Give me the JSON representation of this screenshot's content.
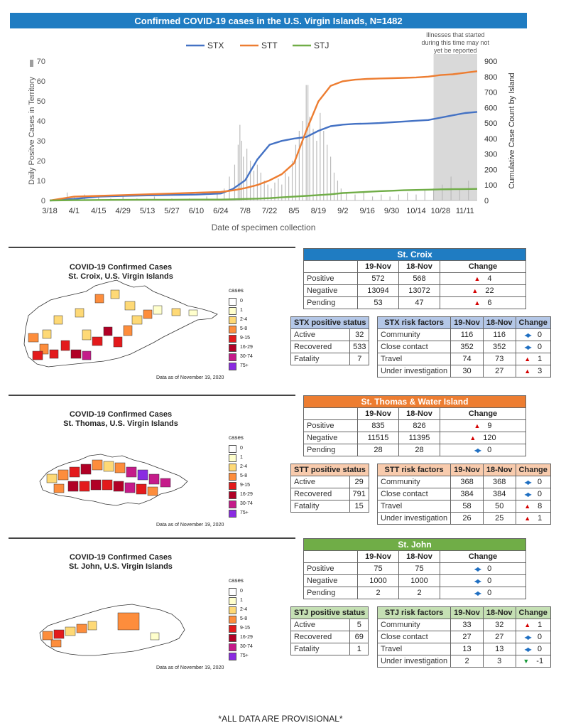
{
  "title": "Confirmed COVID-19 cases in the U.S. Virgin Islands, N=1482",
  "chart_data": {
    "type": "line",
    "x_ticks": [
      "3/18",
      "4/1",
      "4/15",
      "4/29",
      "5/13",
      "5/27",
      "6/10",
      "6/24",
      "7/8",
      "7/22",
      "8/5",
      "8/19",
      "9/2",
      "9/16",
      "9/30",
      "10/14",
      "10/28",
      "11/11"
    ],
    "xlabel": "Date of specimen collection",
    "ylabel_left": "Daily Positve Cases in Territory",
    "ylabel_right": "Cumulative Case Count by Island",
    "ylim_left": [
      0,
      70
    ],
    "ylim_right": [
      0,
      900
    ],
    "left_ticks": [
      0,
      10,
      20,
      30,
      40,
      50,
      60,
      70
    ],
    "right_ticks": [
      0,
      100,
      200,
      300,
      400,
      500,
      600,
      700,
      800,
      900
    ],
    "legend_position": "top",
    "shaded_note": "Illnesses that started during this time may not yet be reported",
    "shaded_range": [
      "10/24",
      "11/18"
    ],
    "series": [
      {
        "name": "STX",
        "color": "#4472c4",
        "x": [
          0,
          14,
          28,
          42,
          56,
          70,
          84,
          98,
          105,
          112,
          119,
          126,
          133,
          140,
          147,
          154,
          161,
          168,
          175,
          182,
          189,
          196,
          203,
          210,
          217,
          224,
          231,
          238,
          245
        ],
        "y": [
          0,
          10,
          25,
          30,
          33,
          36,
          38,
          45,
          75,
          130,
          265,
          360,
          385,
          400,
          410,
          450,
          480,
          490,
          495,
          497,
          500,
          505,
          510,
          515,
          520,
          535,
          550,
          565,
          572
        ]
      },
      {
        "name": "STT",
        "color": "#ed7d31",
        "x": [
          0,
          14,
          28,
          42,
          56,
          70,
          84,
          98,
          105,
          112,
          119,
          126,
          133,
          140,
          147,
          154,
          161,
          168,
          175,
          182,
          189,
          196,
          203,
          210,
          217,
          224,
          231,
          238,
          245
        ],
        "y": [
          0,
          25,
          30,
          35,
          40,
          45,
          50,
          55,
          65,
          80,
          100,
          130,
          170,
          240,
          450,
          640,
          740,
          770,
          780,
          785,
          788,
          790,
          792,
          795,
          800,
          810,
          815,
          825,
          835
        ]
      },
      {
        "name": "STJ",
        "color": "#70ad47",
        "x": [
          0,
          14,
          28,
          42,
          56,
          70,
          84,
          98,
          105,
          112,
          119,
          126,
          133,
          140,
          147,
          154,
          161,
          168,
          175,
          182,
          189,
          196,
          203,
          210,
          217,
          224,
          231,
          238,
          245
        ],
        "y": [
          0,
          2,
          3,
          4,
          5,
          5,
          6,
          6,
          8,
          10,
          12,
          15,
          20,
          25,
          30,
          35,
          40,
          48,
          52,
          56,
          60,
          63,
          66,
          68,
          70,
          72,
          73,
          74,
          75
        ]
      }
    ],
    "daily": [
      {
        "x": 10,
        "y": 4
      },
      {
        "x": 14,
        "y": 2
      },
      {
        "x": 20,
        "y": 3
      },
      {
        "x": 28,
        "y": 2
      },
      {
        "x": 35,
        "y": 1
      },
      {
        "x": 42,
        "y": 2
      },
      {
        "x": 50,
        "y": 1
      },
      {
        "x": 60,
        "y": 2
      },
      {
        "x": 70,
        "y": 1
      },
      {
        "x": 80,
        "y": 1
      },
      {
        "x": 90,
        "y": 2
      },
      {
        "x": 96,
        "y": 4
      },
      {
        "x": 100,
        "y": 6
      },
      {
        "x": 103,
        "y": 12
      },
      {
        "x": 106,
        "y": 18
      },
      {
        "x": 108,
        "y": 28
      },
      {
        "x": 109,
        "y": 38
      },
      {
        "x": 110,
        "y": 30
      },
      {
        "x": 111,
        "y": 22
      },
      {
        "x": 113,
        "y": 26
      },
      {
        "x": 115,
        "y": 20
      },
      {
        "x": 117,
        "y": 15
      },
      {
        "x": 119,
        "y": 18
      },
      {
        "x": 121,
        "y": 14
      },
      {
        "x": 123,
        "y": 10
      },
      {
        "x": 125,
        "y": 8
      },
      {
        "x": 127,
        "y": 6
      },
      {
        "x": 129,
        "y": 9
      },
      {
        "x": 131,
        "y": 11
      },
      {
        "x": 133,
        "y": 8
      },
      {
        "x": 135,
        "y": 14
      },
      {
        "x": 137,
        "y": 12
      },
      {
        "x": 139,
        "y": 20
      },
      {
        "x": 141,
        "y": 28
      },
      {
        "x": 143,
        "y": 35
      },
      {
        "x": 145,
        "y": 40
      },
      {
        "x": 147,
        "y": 58
      },
      {
        "x": 148,
        "y": 58
      },
      {
        "x": 149,
        "y": 42
      },
      {
        "x": 151,
        "y": 36
      },
      {
        "x": 153,
        "y": 30
      },
      {
        "x": 155,
        "y": 44
      },
      {
        "x": 157,
        "y": 35
      },
      {
        "x": 159,
        "y": 28
      },
      {
        "x": 161,
        "y": 22
      },
      {
        "x": 163,
        "y": 14
      },
      {
        "x": 165,
        "y": 10
      },
      {
        "x": 167,
        "y": 6
      },
      {
        "x": 170,
        "y": 4
      },
      {
        "x": 175,
        "y": 3
      },
      {
        "x": 180,
        "y": 4
      },
      {
        "x": 185,
        "y": 2
      },
      {
        "x": 190,
        "y": 3
      },
      {
        "x": 195,
        "y": 2
      },
      {
        "x": 200,
        "y": 3
      },
      {
        "x": 205,
        "y": 4
      },
      {
        "x": 210,
        "y": 3
      },
      {
        "x": 215,
        "y": 5
      },
      {
        "x": 220,
        "y": 6
      },
      {
        "x": 225,
        "y": 8
      },
      {
        "x": 230,
        "y": 12
      },
      {
        "x": 235,
        "y": 6
      },
      {
        "x": 240,
        "y": 10
      }
    ]
  },
  "map_common": {
    "legend_title": "cases",
    "legend": [
      {
        "label": "0",
        "color": "#ffffff"
      },
      {
        "label": "1",
        "color": "#ffffcc"
      },
      {
        "label": "2-4",
        "color": "#fed976"
      },
      {
        "label": "5-8",
        "color": "#fd8d3c"
      },
      {
        "label": "9-15",
        "color": "#e31a1c"
      },
      {
        "label": "16-29",
        "color": "#b10026"
      },
      {
        "label": "30-74",
        "color": "#c51b8a"
      },
      {
        "label": "75+",
        "color": "#8a2be2"
      }
    ],
    "date_note": "Data as of November 19, 2020"
  },
  "stx": {
    "map_title_1": "COVID-19 Confirmed Cases",
    "map_title_2": "St. Croix, U.S. Virgin Islands",
    "header": "St. Croix",
    "header_color": "#1f7cc2",
    "col_1": "19-Nov",
    "col_2": "18-Nov",
    "col_3": "Change",
    "tests": [
      {
        "label": "Positive",
        "a": "572",
        "b": "568",
        "dir": "up",
        "chg": "4"
      },
      {
        "label": "Negative",
        "a": "13094",
        "b": "13072",
        "dir": "up",
        "chg": "22"
      },
      {
        "label": "Pending",
        "a": "53",
        "b": "47",
        "dir": "up",
        "chg": "6"
      }
    ],
    "status_header": "STX positive status",
    "status": [
      {
        "label": "Active",
        "v": "32"
      },
      {
        "label": "Recovered",
        "v": "533"
      },
      {
        "label": "Fatality",
        "v": "7"
      }
    ],
    "risk_header": "STX risk factors",
    "risk": [
      {
        "label": "Community",
        "a": "116",
        "b": "116",
        "dir": "same",
        "chg": "0"
      },
      {
        "label": "Close contact",
        "a": "352",
        "b": "352",
        "dir": "same",
        "chg": "0"
      },
      {
        "label": "Travel",
        "a": "74",
        "b": "73",
        "dir": "up",
        "chg": "1"
      },
      {
        "label": "Under investigation",
        "a": "30",
        "b": "27",
        "dir": "up",
        "chg": "3"
      }
    ],
    "sub_color": "#b4c7e7"
  },
  "stt": {
    "map_title_1": "COVID-19 Confirmed Cases",
    "map_title_2": "St. Thomas, U.S. Virgin Islands",
    "header": "St. Thomas & Water Island",
    "header_color": "#ed7d31",
    "col_1": "19-Nov",
    "col_2": "18-Nov",
    "col_3": "Change",
    "tests": [
      {
        "label": "Positive",
        "a": "835",
        "b": "826",
        "dir": "up",
        "chg": "9"
      },
      {
        "label": "Negative",
        "a": "11515",
        "b": "11395",
        "dir": "up",
        "chg": "120"
      },
      {
        "label": "Pending",
        "a": "28",
        "b": "28",
        "dir": "same",
        "chg": "0"
      }
    ],
    "status_header": "STT positive status",
    "status": [
      {
        "label": "Active",
        "v": "29"
      },
      {
        "label": "Recovered",
        "v": "791"
      },
      {
        "label": "Fatality",
        "v": "15"
      }
    ],
    "risk_header": "STT risk factors",
    "risk": [
      {
        "label": "Community",
        "a": "368",
        "b": "368",
        "dir": "same",
        "chg": "0"
      },
      {
        "label": "Close contact",
        "a": "384",
        "b": "384",
        "dir": "same",
        "chg": "0"
      },
      {
        "label": "Travel",
        "a": "58",
        "b": "50",
        "dir": "up",
        "chg": "8"
      },
      {
        "label": "Under investigation",
        "a": "26",
        "b": "25",
        "dir": "up",
        "chg": "1"
      }
    ],
    "sub_color": "#f8cbad"
  },
  "stj": {
    "map_title_1": "COVID-19 Confirmed Cases",
    "map_title_2": "St. John, U.S. Virgin Islands",
    "header": "St. John",
    "header_color": "#70ad47",
    "col_1": "19-Nov",
    "col_2": "18-Nov",
    "col_3": "Change",
    "tests": [
      {
        "label": "Positive",
        "a": "75",
        "b": "75",
        "dir": "same",
        "chg": "0"
      },
      {
        "label": "Negative",
        "a": "1000",
        "b": "1000",
        "dir": "same",
        "chg": "0"
      },
      {
        "label": "Pending",
        "a": "2",
        "b": "2",
        "dir": "same",
        "chg": "0"
      }
    ],
    "status_header": "STJ positive status",
    "status": [
      {
        "label": "Active",
        "v": "5"
      },
      {
        "label": "Recovered",
        "v": "69"
      },
      {
        "label": "Fatality",
        "v": "1"
      }
    ],
    "risk_header": "STJ risk factors",
    "risk": [
      {
        "label": "Community",
        "a": "33",
        "b": "32",
        "dir": "up",
        "chg": "1"
      },
      {
        "label": "Close contact",
        "a": "27",
        "b": "27",
        "dir": "same",
        "chg": "0"
      },
      {
        "label": "Travel",
        "a": "13",
        "b": "13",
        "dir": "same",
        "chg": "0"
      },
      {
        "label": "Under investigation",
        "a": "2",
        "b": "3",
        "dir": "down",
        "chg": "-1"
      }
    ],
    "sub_color": "#c5e0b4"
  },
  "footer": "*ALL DATA ARE PROVISIONAL*"
}
